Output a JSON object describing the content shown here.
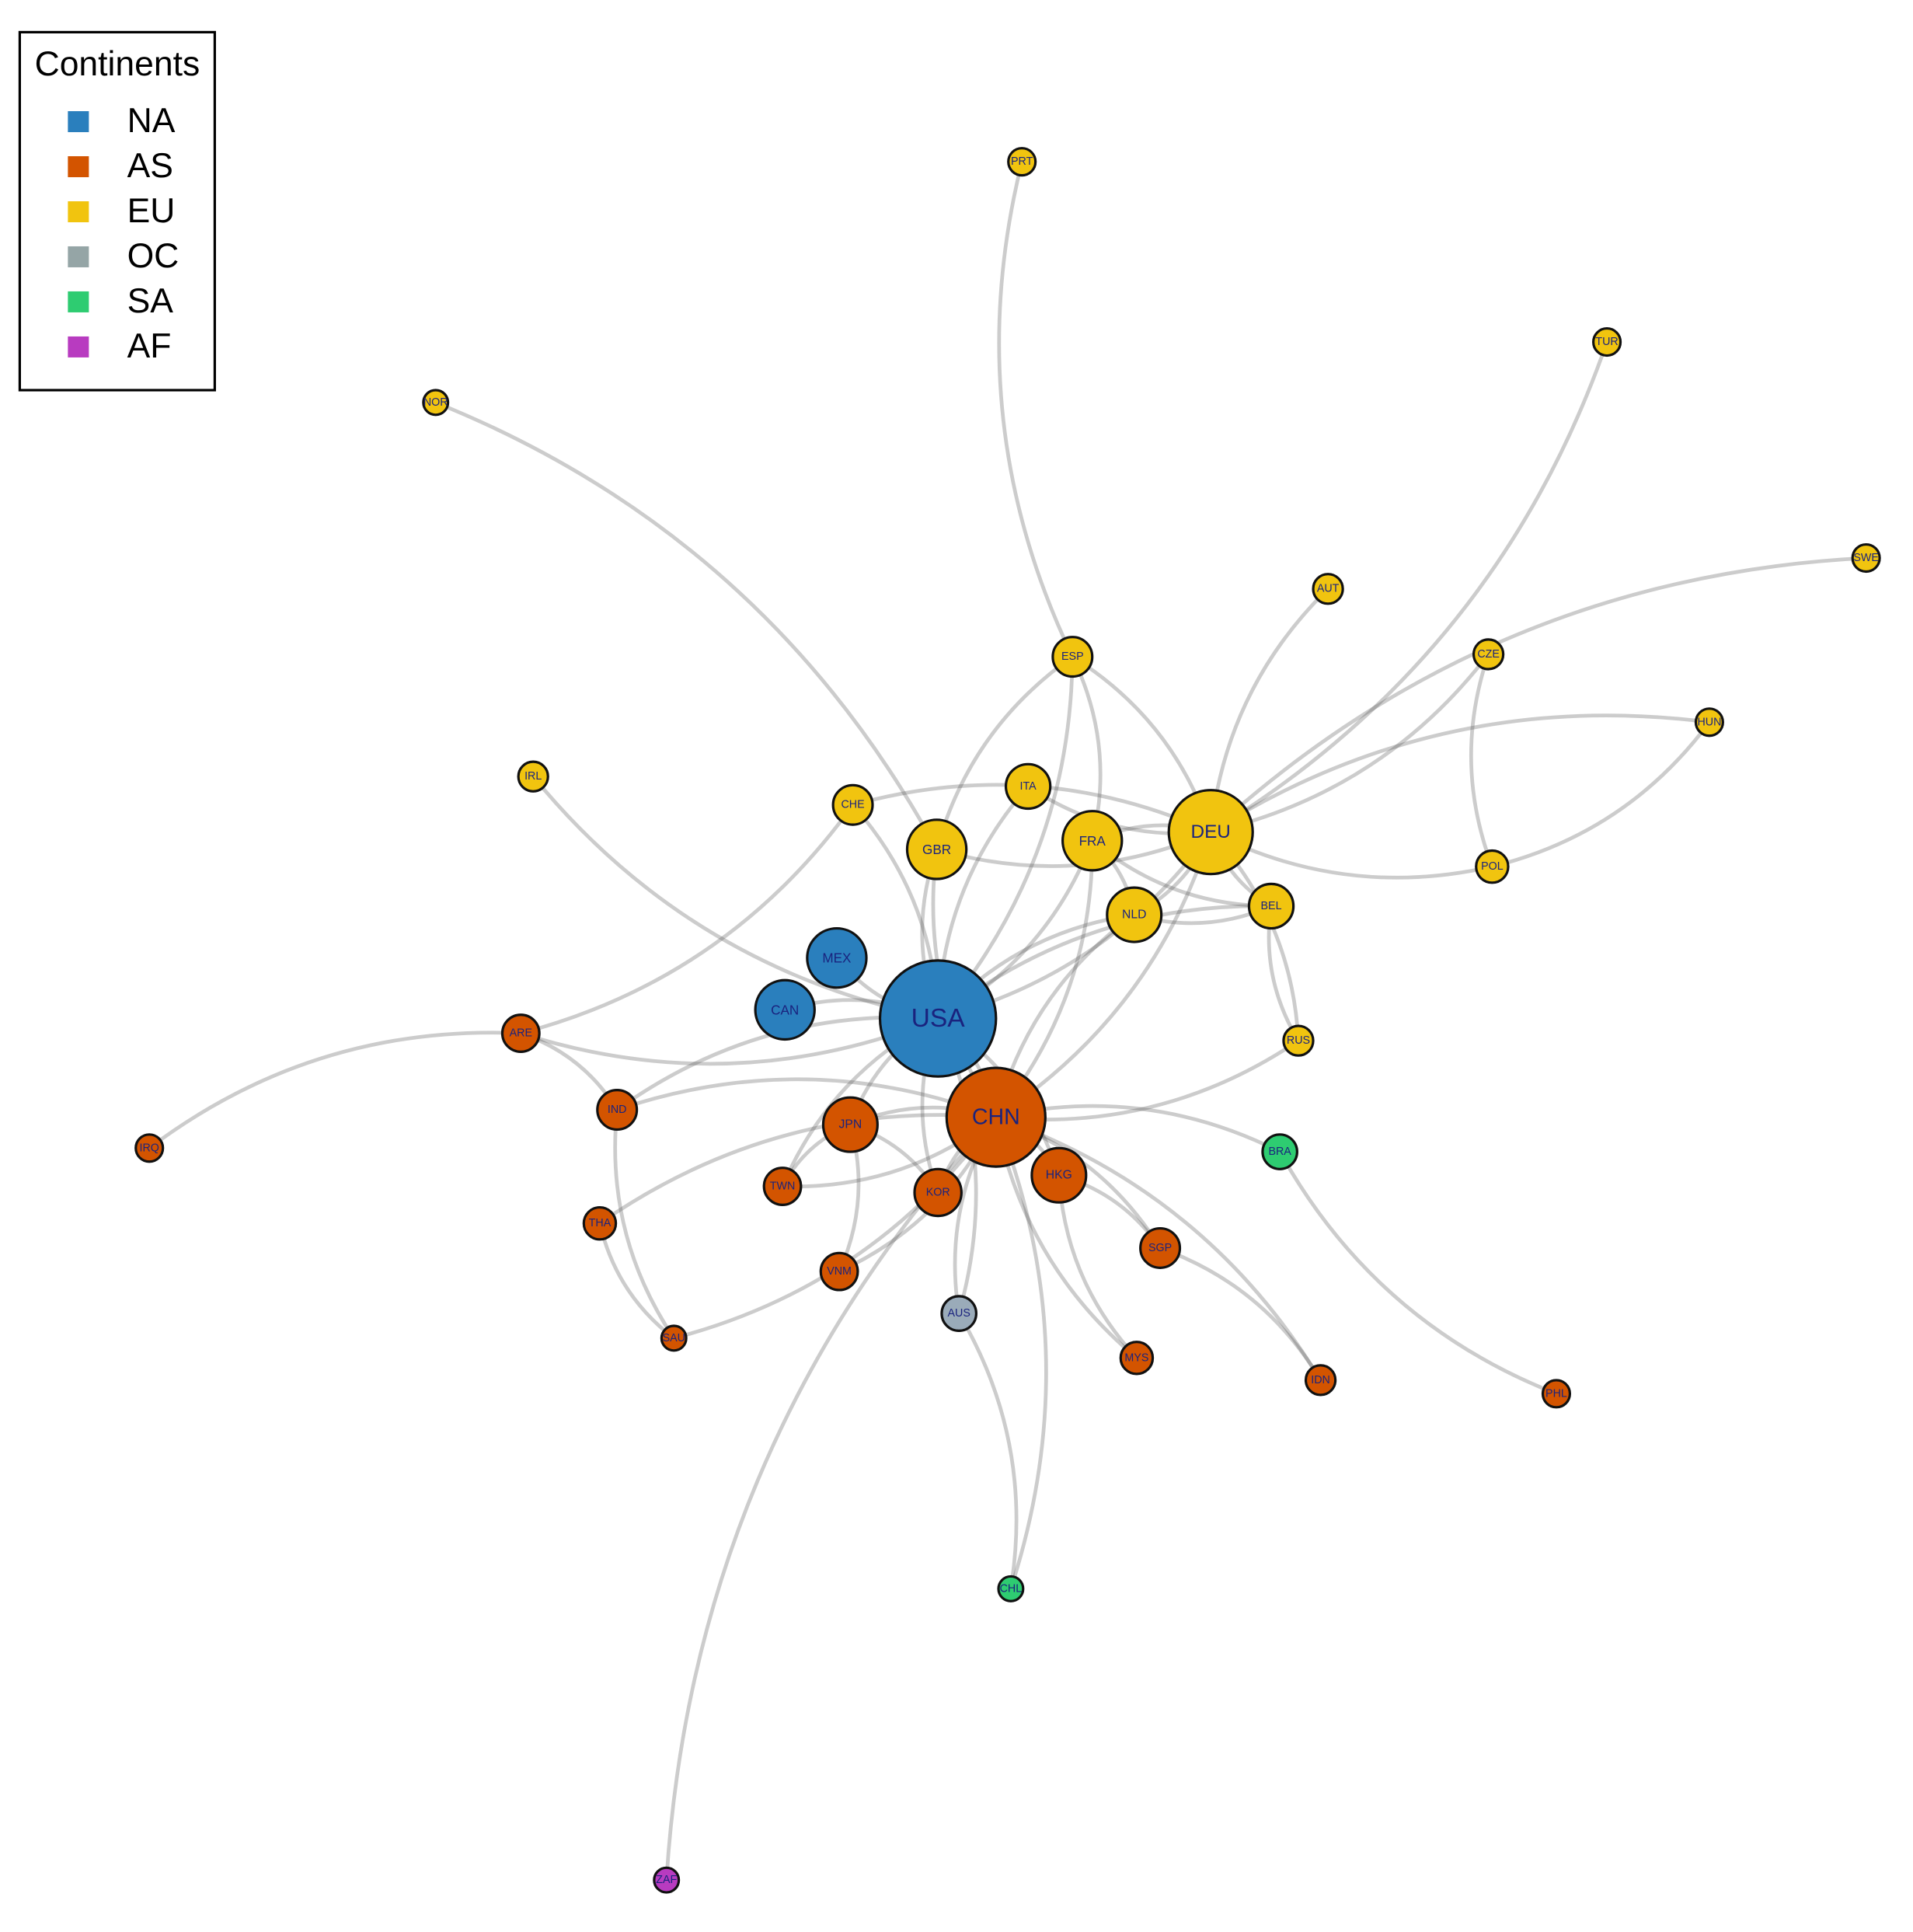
{
  "legend": {
    "title": "Continents",
    "items": [
      {
        "label": "NA",
        "color": "#2a7fbd"
      },
      {
        "label": "AS",
        "color": "#d35400"
      },
      {
        "label": "EU",
        "color": "#f1c40f"
      },
      {
        "label": "OC",
        "color": "#95a5a6"
      },
      {
        "label": "SA",
        "color": "#2ecc71"
      },
      {
        "label": "AF",
        "color": "#b83bc0"
      }
    ]
  },
  "nodes": [
    {
      "label": "USA",
      "continent": "NA"
    },
    {
      "label": "CHN",
      "continent": "AS"
    },
    {
      "label": "DEU",
      "continent": "EU"
    },
    {
      "label": "MEX",
      "continent": "NA"
    },
    {
      "label": "CAN",
      "continent": "NA"
    },
    {
      "label": "GBR",
      "continent": "EU"
    },
    {
      "label": "FRA",
      "continent": "EU"
    },
    {
      "label": "NLD",
      "continent": "EU"
    },
    {
      "label": "JPN",
      "continent": "AS"
    },
    {
      "label": "HKG",
      "continent": "AS"
    },
    {
      "label": "KOR",
      "continent": "AS"
    },
    {
      "label": "ITA",
      "continent": "EU"
    },
    {
      "label": "ESP",
      "continent": "EU"
    },
    {
      "label": "BEL",
      "continent": "EU"
    },
    {
      "label": "CHE",
      "continent": "EU"
    },
    {
      "label": "IRL",
      "continent": "EU"
    },
    {
      "label": "AUT",
      "continent": "EU"
    },
    {
      "label": "CZE",
      "continent": "EU"
    },
    {
      "label": "HUN",
      "continent": "EU"
    },
    {
      "label": "POL",
      "continent": "EU"
    },
    {
      "label": "RUS",
      "continent": "EU"
    },
    {
      "label": "BRA",
      "continent": "SA"
    },
    {
      "label": "SGP",
      "continent": "AS"
    },
    {
      "label": "MYS",
      "continent": "AS"
    },
    {
      "label": "IDN",
      "continent": "AS"
    },
    {
      "label": "PHL",
      "continent": "AS"
    },
    {
      "label": "AUS",
      "continent": "OC"
    },
    {
      "label": "VNM",
      "continent": "AS"
    },
    {
      "label": "SAU",
      "continent": "AS"
    },
    {
      "label": "THA",
      "continent": "AS"
    },
    {
      "label": "TWN",
      "continent": "AS"
    },
    {
      "label": "IND",
      "continent": "AS"
    },
    {
      "label": "ARE",
      "continent": "AS"
    },
    {
      "label": "IRQ",
      "continent": "AS"
    },
    {
      "label": "NOR",
      "continent": "EU"
    },
    {
      "label": "PRT",
      "continent": "EU"
    },
    {
      "label": "TUR",
      "continent": "EU"
    },
    {
      "label": "SWE",
      "continent": "EU"
    },
    {
      "label": "CHL",
      "continent": "SA"
    },
    {
      "label": "ZAF",
      "continent": "AF"
    }
  ]
}
